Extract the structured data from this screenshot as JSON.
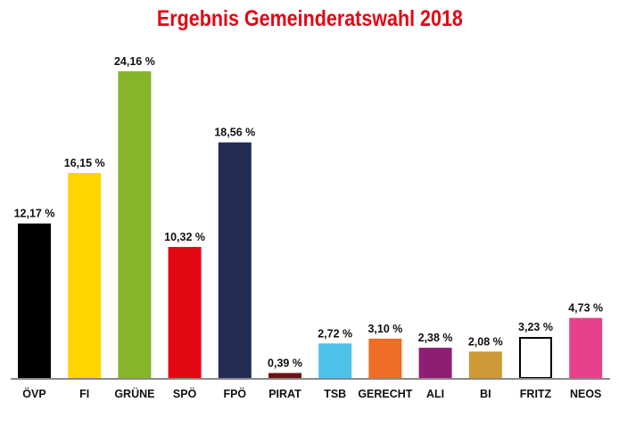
{
  "chart_data": {
    "type": "bar",
    "title": "Ergebnis Gemeinderatswahl 2018",
    "xlabel": "",
    "ylabel": "",
    "ylim": [
      0,
      25
    ],
    "grid": false,
    "categories": [
      "ÖVP",
      "FI",
      "GRÜNE",
      "SPÖ",
      "FPÖ",
      "PIRAT",
      "TSB",
      "GERECHT",
      "ALI",
      "BI",
      "FRITZ",
      "NEOS"
    ],
    "values": [
      12.17,
      16.15,
      24.16,
      10.32,
      18.56,
      0.39,
      2.72,
      3.1,
      2.38,
      2.08,
      3.23,
      4.73
    ],
    "value_labels": [
      "12,17 %",
      "16,15 %",
      "24,16 %",
      "10,32 %",
      "18,56 %",
      "0,39 %",
      "2,72 %",
      "3,10 %",
      "2,38 %",
      "2,08 %",
      "3,23 %",
      "4,73 %"
    ],
    "colors": [
      "#000000",
      "#ffd500",
      "#86b52a",
      "#e30613",
      "#222c54",
      "#6b1414",
      "#4ec1eb",
      "#ef6d24",
      "#8c1f74",
      "#cd9a37",
      "#ffffff",
      "#e6418a"
    ],
    "axis_color": "#8a8a8a"
  }
}
